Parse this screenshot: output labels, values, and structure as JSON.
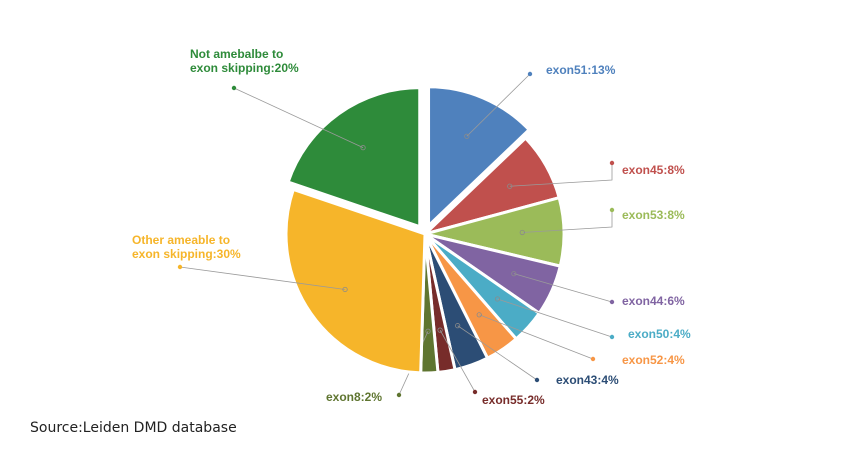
{
  "chart_data": {
    "type": "pie",
    "title": "",
    "slices": [
      {
        "label": "exon51:13%",
        "value": 13,
        "color": "#4f81bd"
      },
      {
        "label": "exon45:8%",
        "value": 8,
        "color": "#c0504d"
      },
      {
        "label": "exon53:8%",
        "value": 8,
        "color": "#9bbb59"
      },
      {
        "label": "exon44:6%",
        "value": 6,
        "color": "#8064a2"
      },
      {
        "label": "exon50:4%",
        "value": 4,
        "color": "#4bacc6"
      },
      {
        "label": "exon52:4%",
        "value": 4,
        "color": "#f79646"
      },
      {
        "label": "exon43:4%",
        "value": 4,
        "color": "#2c4d75"
      },
      {
        "label": "exon55:2%",
        "value": 2,
        "color": "#772c2a"
      },
      {
        "label": "exon8:2%",
        "value": 2,
        "color": "#5f7530"
      },
      {
        "label": "Other ameable to exon skipping:30%",
        "value": 30,
        "color": "#f6b52a"
      },
      {
        "label": "Not amebalbe to exon skipping:20%",
        "value": 20,
        "color": "#2e8b3a"
      }
    ],
    "label_text_colors": {
      "exon51:13%": "#4f81bd",
      "exon45:8%": "#c0504d",
      "exon53:8%": "#9bbb59",
      "exon44:6%": "#8064a2",
      "exon50:4%": "#4bacc6",
      "exon52:4%": "#f79646",
      "exon43:4%": "#2c4d75",
      "exon55:2%": "#772c2a",
      "exon8:2%": "#5f7530",
      "Other ameable to exon skipping:30%": "#f6b52a",
      "Not amebalbe to exon skipping:20%": "#2e8b3a"
    },
    "exploded_slices": [
      "exon51:13%",
      "Not amebalbe to exon skipping:20%"
    ]
  },
  "source": "Source:Leiden DMD database"
}
